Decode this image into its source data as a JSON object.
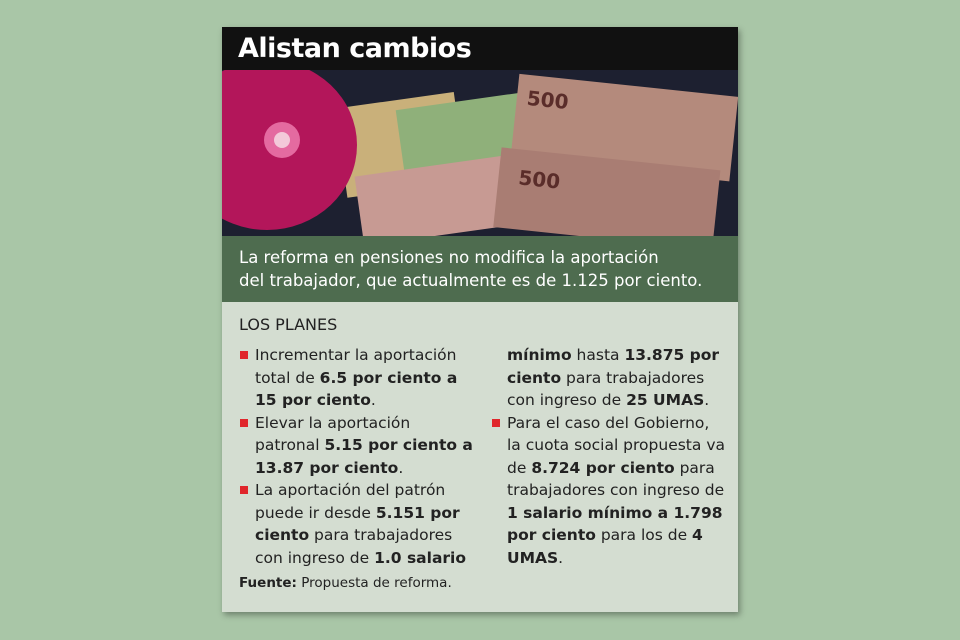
{
  "header": {
    "title": "Alistan cambios"
  },
  "lead": {
    "lines": [
      "La reforma en pensiones no modifica la aportación",
      "del trabajador, que actualmente es de 1.125 por ciento."
    ]
  },
  "content": {
    "heading": "LOS PLANES",
    "items": [
      [
        "Incrementar la aportación total de ",
        "6.5 por ciento a 15 por ciento",
        "."
      ],
      [
        "Elevar la aportación patronal ",
        "5.15 por ciento a 13.87 por ciento",
        "."
      ],
      [
        "La aportación del patrón puede ir desde ",
        "5.151 por ciento",
        " para trabajadores con ingreso de ",
        "1.0 salario mínimo",
        " hasta ",
        "13.875 por ciento",
        " para trabajadores con ingreso de ",
        "25 UMAS",
        "."
      ],
      [
        "Para el caso del Gobierno, la cuota social propuesta va de ",
        "8.724 por ciento",
        " para trabajadores con ingreso de ",
        "1 salario mínimo a 1.798 por ciento",
        " para los de ",
        "4 UMAS",
        "."
      ]
    ]
  },
  "source": {
    "label": "Fuente:",
    "text": "Propuesta de reforma."
  }
}
